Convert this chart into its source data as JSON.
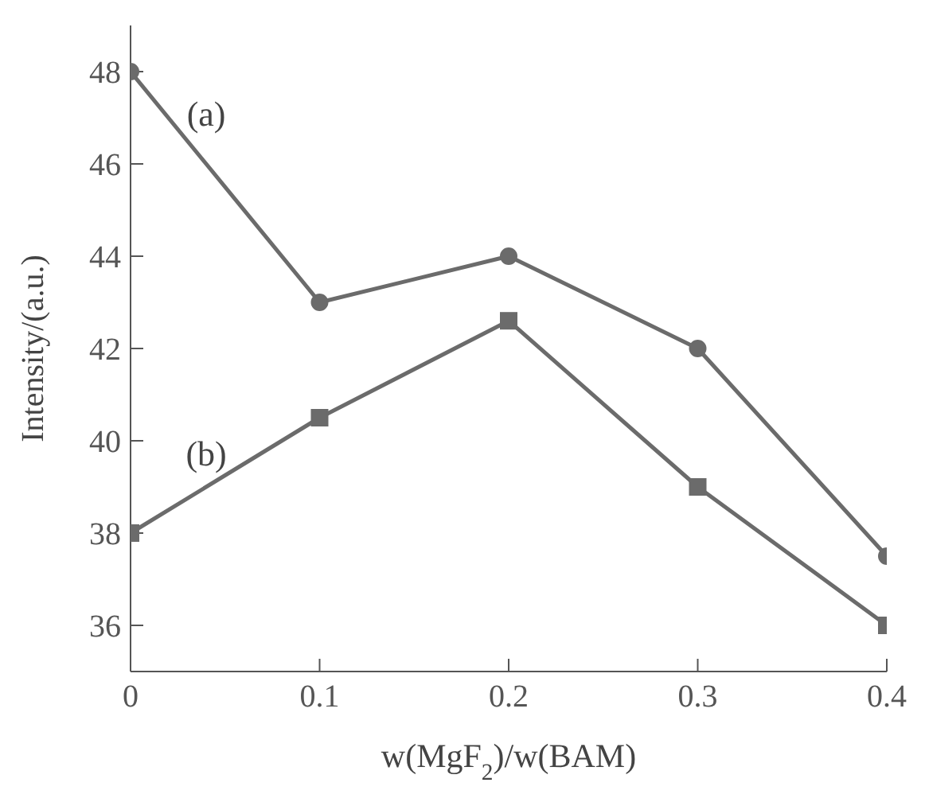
{
  "chart_data": {
    "type": "line",
    "xlabel": "w(MgF$_{2}$)/w(BAM)",
    "ylabel": "Intensity/(a.u.)",
    "x": [
      0,
      0.1,
      0.2,
      0.3,
      0.4
    ],
    "series": [
      {
        "name": "(a)",
        "color": "#6b6b6b",
        "marker": "circle",
        "values": [
          48,
          43,
          44,
          42,
          37.5
        ]
      },
      {
        "name": "(b)",
        "color": "#6b6b6b",
        "marker": "square",
        "values": [
          38,
          40.5,
          42.6,
          39,
          36
        ]
      }
    ],
    "xlim": [
      0,
      0.4
    ],
    "xticks": [
      0,
      0.1,
      0.2,
      0.3,
      0.4
    ],
    "ylim": [
      35,
      49
    ],
    "yticks": [
      36,
      38,
      40,
      42,
      44,
      46,
      48
    ],
    "grid": false,
    "legend": false,
    "line_style": "solid"
  }
}
